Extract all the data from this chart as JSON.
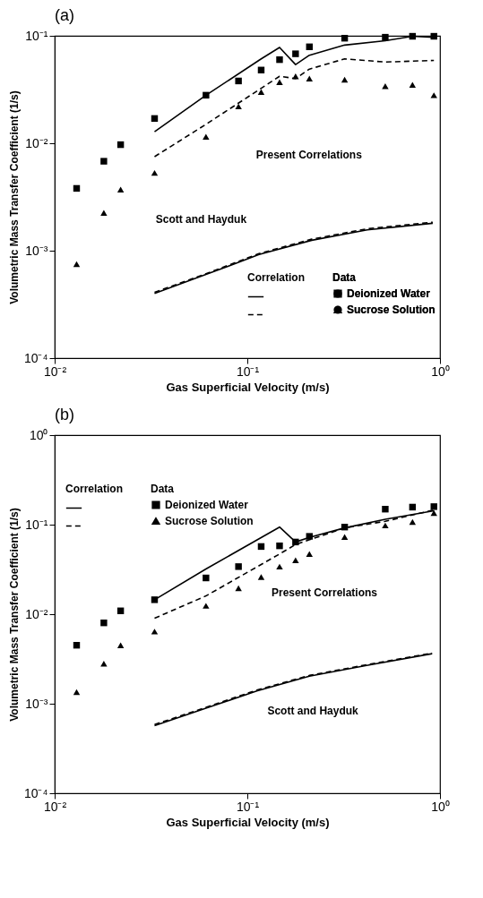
{
  "chart_data": [
    {
      "type": "scatter",
      "title": "(a)",
      "xlabel": "Gas Superficial Velocity (m/s)",
      "ylabel": "Volumetric Mass Transfer Coefficient (1/s)",
      "legend_title": "Data",
      "legend": "bottom right",
      "log": "xy",
      "xlim": [
        0.01,
        1
      ],
      "xticks": [
        {
          "value": 0.01,
          "label": "10⁻²"
        },
        {
          "value": 0.1,
          "label": "10⁻¹"
        },
        {
          "value": 1,
          "label": "10⁰"
        }
      ],
      "ylim": [
        0.0001,
        0.1
      ],
      "yticks": [
        {
          "value": 0.0001,
          "label": "10⁻⁴"
        },
        {
          "value": 0.001,
          "label": "10⁻³"
        },
        {
          "value": 0.01,
          "label": "10⁻²"
        },
        {
          "value": 0.1,
          "label": "10⁻¹"
        }
      ],
      "annotations": [
        "Correlation",
        "Present Correlations",
        "Scott and Hayduk"
      ],
      "series": [
        {
          "name": "Deionized Water",
          "type": "scatter",
          "marker": "square",
          "color": "#000000",
          "x": [
            0.013,
            0.018,
            0.022,
            0.033,
            0.061,
            0.09,
            0.118,
            0.147,
            0.178,
            0.21,
            0.32,
            0.52,
            0.72,
            0.93
          ],
          "values": [
            0.0038,
            0.0068,
            0.0097,
            0.017,
            0.028,
            0.038,
            0.048,
            0.06,
            0.068,
            0.079,
            0.095,
            0.097,
            0.099,
            0.099
          ]
        },
        {
          "name": "Sucrose Solution",
          "type": "scatter",
          "marker": "triangle",
          "color": "#000000",
          "x": [
            0.013,
            0.018,
            0.022,
            0.033,
            0.061,
            0.09,
            0.118,
            0.147,
            0.178,
            0.21,
            0.32,
            0.52,
            0.72,
            0.93
          ],
          "values": [
            0.00075,
            0.00225,
            0.0037,
            0.0053,
            0.0115,
            0.022,
            0.03,
            0.037,
            0.042,
            0.04,
            0.039,
            0.034,
            0.035,
            0.028
          ]
        },
        {
          "type": "line",
          "line_style": "solid",
          "color": "#000000",
          "x": [
            0.033,
            0.061,
            0.118,
            0.147,
            0.178,
            0.21,
            0.32,
            0.52,
            0.72,
            0.93
          ],
          "values": [
            0.0128,
            0.028,
            0.061,
            0.078,
            0.054,
            0.066,
            0.082,
            0.09,
            0.099,
            0.097
          ]
        },
        {
          "type": "line",
          "line_style": "dashed",
          "color": "#000000",
          "x": [
            0.033,
            0.061,
            0.147,
            0.178,
            0.21,
            0.32,
            0.52,
            0.93
          ],
          "values": [
            0.0075,
            0.015,
            0.042,
            0.04,
            0.049,
            0.061,
            0.057,
            0.059
          ]
        },
        {
          "type": "line",
          "line_style": "solid",
          "color": "#000000",
          "x": [
            0.033,
            0.061,
            0.115,
            0.216,
            0.419,
            0.917
          ],
          "values": [
            0.0004,
            0.0006,
            0.00092,
            0.00125,
            0.00156,
            0.0018
          ]
        },
        {
          "type": "line",
          "line_style": "dashed",
          "color": "#000000",
          "x": [
            0.033,
            0.061,
            0.115,
            0.216,
            0.419,
            0.917
          ],
          "values": [
            0.00041,
            0.00061,
            0.00094,
            0.00128,
            0.0016,
            0.00184
          ]
        }
      ]
    },
    {
      "type": "scatter",
      "title": "(b)",
      "xlabel": "Gas Superficial Velocity (m/s)",
      "ylabel": "Volumetric Mass Transfer Coefficient (1/s)",
      "legend_title": "Data",
      "legend": "top left",
      "log": "xy",
      "xlim": [
        0.01,
        1
      ],
      "xticks": [
        {
          "value": 0.01,
          "label": "10⁻²"
        },
        {
          "value": 0.1,
          "label": "10⁻¹"
        },
        {
          "value": 1,
          "label": "10⁰"
        }
      ],
      "ylim": [
        0.0001,
        1
      ],
      "yticks": [
        {
          "value": 0.0001,
          "label": "10⁻⁴"
        },
        {
          "value": 0.001,
          "label": "10⁻³"
        },
        {
          "value": 0.01,
          "label": "10⁻²"
        },
        {
          "value": 0.1,
          "label": "10⁻¹"
        },
        {
          "value": 1,
          "label": "10⁰"
        }
      ],
      "annotations": [
        "Correlation",
        "Present Correlations",
        "Scott and Hayduk"
      ],
      "series": [
        {
          "name": "Deionized Water",
          "type": "scatter",
          "marker": "square",
          "color": "#000000",
          "x": [
            0.013,
            0.018,
            0.022,
            0.033,
            0.061,
            0.09,
            0.118,
            0.147,
            0.178,
            0.21,
            0.32,
            0.52,
            0.72,
            0.93
          ],
          "values": [
            0.0045,
            0.008,
            0.0109,
            0.0145,
            0.0254,
            0.034,
            0.057,
            0.058,
            0.064,
            0.074,
            0.094,
            0.149,
            0.157,
            0.159
          ]
        },
        {
          "name": "Sucrose Solution",
          "type": "scatter",
          "marker": "triangle",
          "color": "#000000",
          "x": [
            0.013,
            0.018,
            0.022,
            0.033,
            0.061,
            0.09,
            0.118,
            0.147,
            0.178,
            0.21,
            0.32,
            0.52,
            0.72,
            0.93
          ],
          "values": [
            0.00135,
            0.0028,
            0.0045,
            0.0064,
            0.0124,
            0.0195,
            0.026,
            0.034,
            0.04,
            0.047,
            0.073,
            0.098,
            0.107,
            0.135
          ]
        },
        {
          "type": "line",
          "line_style": "solid",
          "color": "#000000",
          "x": [
            0.033,
            0.061,
            0.147,
            0.178,
            0.21,
            0.32,
            0.52,
            0.93
          ],
          "values": [
            0.0145,
            0.032,
            0.094,
            0.064,
            0.072,
            0.092,
            0.115,
            0.143
          ]
        },
        {
          "type": "line",
          "line_style": "dashed",
          "color": "#000000",
          "x": [
            0.033,
            0.061,
            0.147,
            0.178,
            0.32,
            0.52,
            0.93
          ],
          "values": [
            0.009,
            0.016,
            0.047,
            0.06,
            0.092,
            0.109,
            0.146
          ]
        },
        {
          "type": "line",
          "line_style": "solid",
          "color": "#000000",
          "x": [
            0.033,
            0.06,
            0.112,
            0.21,
            0.41,
            0.91
          ],
          "values": [
            0.00057,
            0.00088,
            0.00139,
            0.00203,
            0.00266,
            0.00362
          ]
        },
        {
          "type": "line",
          "line_style": "dashed",
          "color": "#000000",
          "x": [
            0.033,
            0.06,
            0.112,
            0.21,
            0.41,
            0.91
          ],
          "values": [
            0.000585,
            0.0009,
            0.00142,
            0.00207,
            0.00271,
            0.00368
          ]
        }
      ]
    }
  ]
}
